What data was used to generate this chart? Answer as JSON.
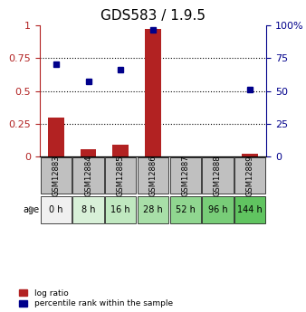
{
  "title": "GDS583 / 1.9.5",
  "samples": [
    "GSM12883",
    "GSM12884",
    "GSM12885",
    "GSM12886",
    "GSM12887",
    "GSM12888",
    "GSM12889"
  ],
  "age_labels": [
    "0 h",
    "8 h",
    "16 h",
    "28 h",
    "52 h",
    "96 h",
    "144 h"
  ],
  "log_ratio": [
    0.3,
    0.06,
    0.09,
    0.97,
    0.0,
    0.0,
    0.02
  ],
  "percentile_rank": [
    0.7,
    0.57,
    0.66,
    0.96,
    null,
    null,
    0.51
  ],
  "bar_color": "#b22222",
  "dot_color": "#00008b",
  "gsm_bg_color": "#c0c0c0",
  "age_bg_colors": [
    "#f0f0f0",
    "#d8f0d8",
    "#c0e8c0",
    "#a8dfa8",
    "#90d690",
    "#78cd78",
    "#60c460"
  ],
  "ylim_left": [
    0,
    1.0
  ],
  "ylim_right": [
    0,
    100
  ],
  "yticks_left": [
    0,
    0.25,
    0.5,
    0.75,
    1.0
  ],
  "yticks_right": [
    0,
    25,
    50,
    75,
    100
  ],
  "ytick_labels_left": [
    "0",
    "0.25",
    "0.5",
    "0.75",
    "1"
  ],
  "ytick_labels_right": [
    "0",
    "25",
    "50",
    "75",
    "100%"
  ],
  "hlines": [
    0.25,
    0.5,
    0.75
  ],
  "legend_items": [
    {
      "label": "log ratio",
      "color": "#b22222",
      "marker": "s"
    },
    {
      "label": "percentile rank within the sample",
      "color": "#00008b",
      "marker": "s"
    }
  ]
}
